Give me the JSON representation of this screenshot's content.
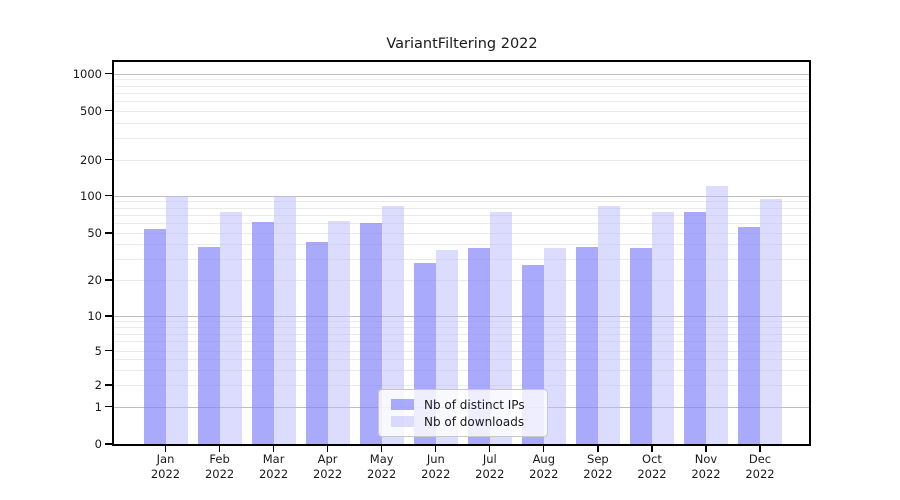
{
  "title": "VariantFiltering 2022",
  "chart_data": {
    "type": "bar",
    "title": "VariantFiltering 2022",
    "categories": [
      "Jan 2022",
      "Feb 2022",
      "Mar 2022",
      "Apr 2022",
      "May 2022",
      "Jun 2022",
      "Jul 2022",
      "Aug 2022",
      "Sep 2022",
      "Oct 2022",
      "Nov 2022",
      "Dec 2022"
    ],
    "series": [
      {
        "name": "Nb of distinct IPs",
        "color": "rgba(134,134,252,0.70)",
        "values": [
          54,
          38,
          61,
          42,
          60,
          28,
          37,
          27,
          38,
          37,
          74,
          56
        ]
      },
      {
        "name": "Nb of downloads",
        "color": "rgba(186,186,253,0.50)",
        "values": [
          100,
          74,
          100,
          63,
          83,
          36,
          74,
          37,
          83,
          74,
          120,
          94
        ]
      }
    ],
    "yscale": "symlog",
    "yticks": [
      0,
      1,
      2,
      5,
      10,
      20,
      50,
      100,
      200,
      500,
      1000
    ],
    "ylim": [
      0,
      1400
    ],
    "xlabel": "",
    "ylabel": "",
    "grid": "both",
    "legend_position": "lower center"
  },
  "colors": {
    "grid_major": "#bdbdbd",
    "grid_minor": "#ebebeb",
    "axis": "#000000",
    "background": "#ffffff"
  }
}
